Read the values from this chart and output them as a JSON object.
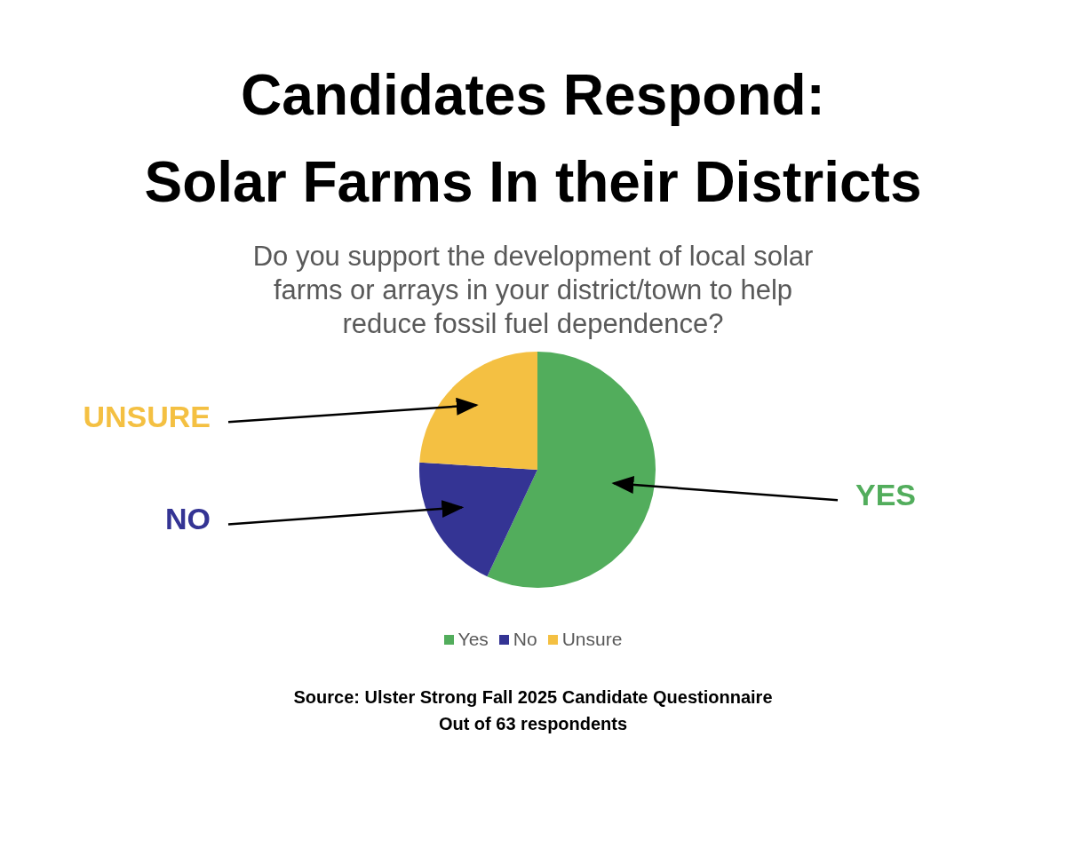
{
  "chart_data": {
    "type": "pie",
    "title": "Candidates Respond:\nSolar Farms In their Districts",
    "subtitle": "Do you support the development of local solar farms or arrays in your district/town to help reduce fossil fuel dependence?",
    "categories": [
      "Yes",
      "No",
      "Unsure"
    ],
    "values": [
      57,
      19,
      24
    ],
    "colors": [
      "#52ad5c",
      "#343494",
      "#f4c042"
    ],
    "legend": "bottom",
    "annotations": [
      {
        "text": "UNSURE",
        "x": "Unsure"
      },
      {
        "text": "NO",
        "x": "No"
      },
      {
        "text": "YES",
        "x": "Yes"
      },
      "Source: Ulster Strong Fall 2025 Candidate Questionnaire",
      "Out of 63 respondents"
    ]
  }
}
